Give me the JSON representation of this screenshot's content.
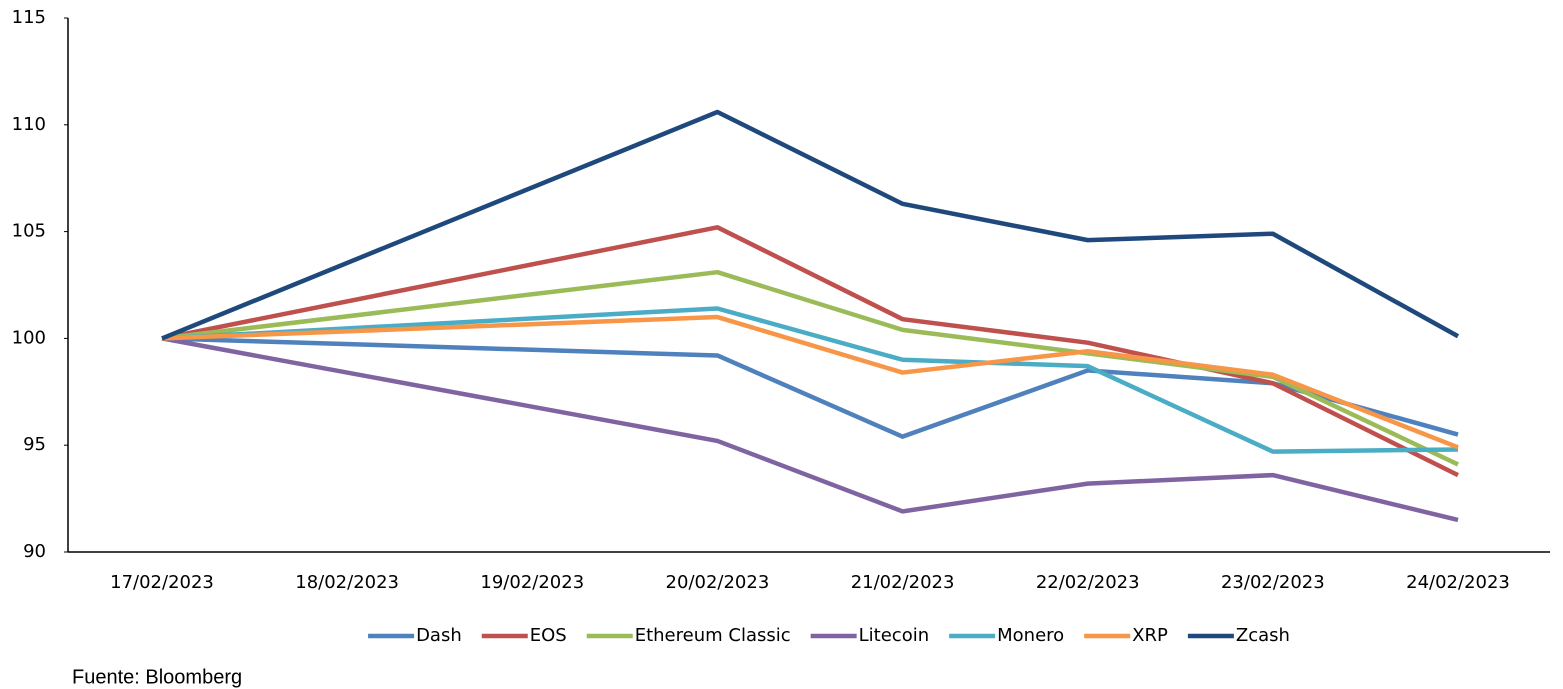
{
  "chart_data": {
    "type": "line",
    "x": [
      "17/02/2023",
      "20/02/2023",
      "21/02/2023",
      "22/02/2023",
      "23/02/2023",
      "24/02/2023"
    ],
    "xticks": [
      "17/02/2023",
      "18/02/2023",
      "19/02/2023",
      "20/02/2023",
      "21/02/2023",
      "22/02/2023",
      "23/02/2023",
      "24/02/2023"
    ],
    "series": [
      {
        "name": "Dash",
        "color": "#4f81bd",
        "values": [
          100,
          99.2,
          95.4,
          98.5,
          97.9,
          95.5
        ]
      },
      {
        "name": "EOS",
        "color": "#c0504d",
        "values": [
          100,
          105.2,
          100.9,
          99.8,
          97.9,
          93.6
        ]
      },
      {
        "name": "Ethereum Classic",
        "color": "#9bbb59",
        "values": [
          100,
          103.1,
          100.4,
          99.3,
          98.2,
          94.1
        ]
      },
      {
        "name": "Litecoin",
        "color": "#8064a2",
        "values": [
          100,
          95.2,
          91.9,
          93.2,
          93.6,
          91.5
        ]
      },
      {
        "name": "Monero",
        "color": "#4bacc6",
        "values": [
          100,
          101.4,
          99.0,
          98.7,
          94.7,
          94.8
        ]
      },
      {
        "name": "XRP",
        "color": "#f79646",
        "values": [
          100,
          101.0,
          98.4,
          99.4,
          98.3,
          94.9
        ]
      },
      {
        "name": "Zcash",
        "color": "#1f497d",
        "values": [
          100,
          110.6,
          106.3,
          104.6,
          104.9,
          100.1
        ]
      }
    ],
    "ylim": [
      90,
      115
    ],
    "yticks": [
      90,
      95,
      100,
      105,
      110,
      115
    ],
    "grid": false,
    "legend": "bottom",
    "source": "Fuente: Bloomberg"
  }
}
